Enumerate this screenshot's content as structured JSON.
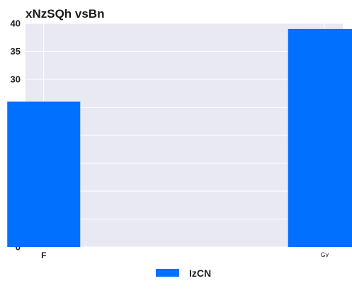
{
  "chart_data": {
    "type": "bar",
    "title": "xNzSQh vsBn",
    "categories": [
      "F",
      "Gv"
    ],
    "series": [
      {
        "name": "IzCN",
        "values": [
          26,
          39
        ],
        "color": "#0070ff"
      }
    ],
    "ylim": [
      0,
      40
    ],
    "yticks": [
      0,
      5,
      10,
      15,
      20,
      25,
      30,
      35,
      40
    ],
    "xlabel": "",
    "ylabel": "",
    "grid": true,
    "legend_position": "bottom",
    "plot_background": "#e8e9f2",
    "grid_color": "#ffffff"
  }
}
